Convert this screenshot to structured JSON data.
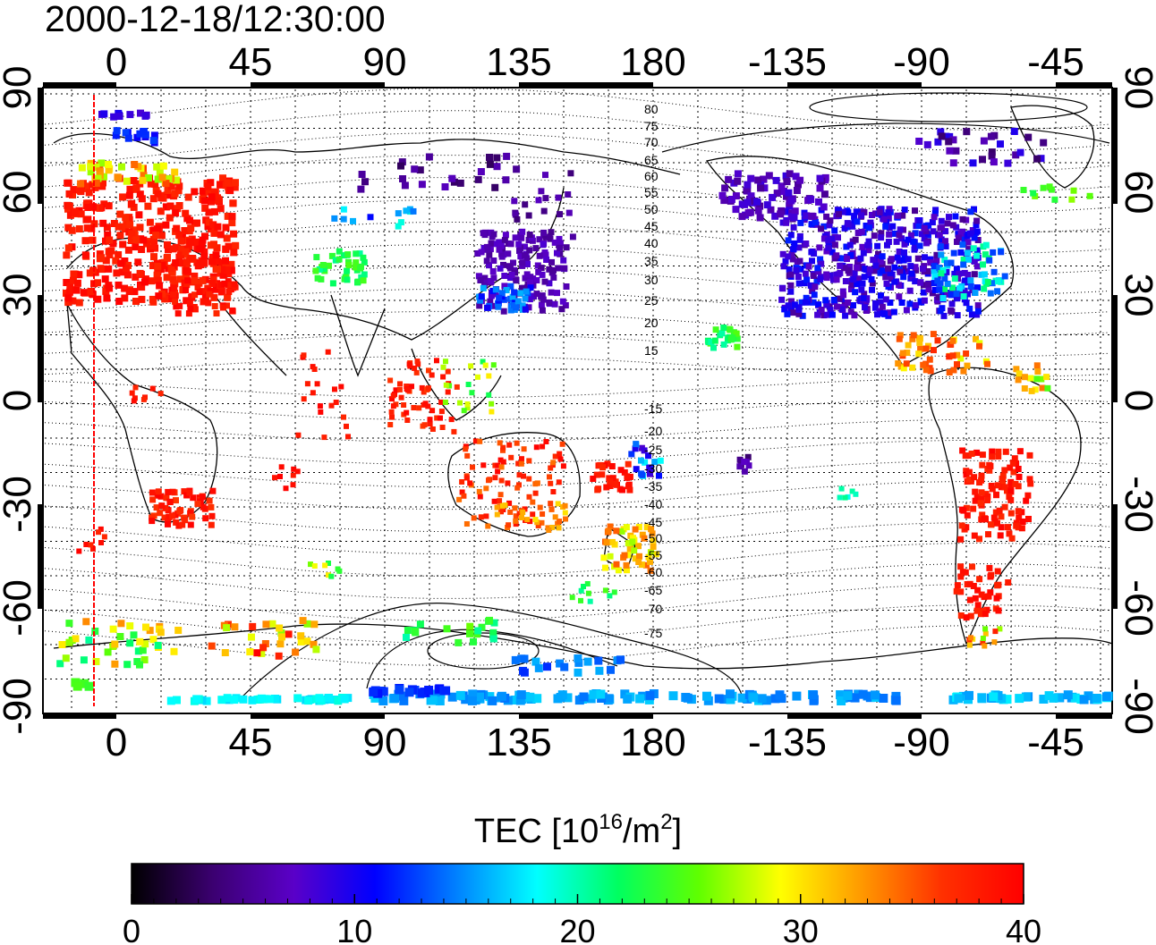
{
  "title": "2000-12-18/12:30:00",
  "map": {
    "top_longitude_ticks": [
      "0",
      "45",
      "90",
      "135",
      "180",
      "-135",
      "-90",
      "-45"
    ],
    "bottom_longitude_ticks": [
      "0",
      "45",
      "90",
      "135",
      "180",
      "-135",
      "-90",
      "-45"
    ],
    "latitude_ticks": [
      "90",
      "60",
      "30",
      "0",
      "-30",
      "-60",
      "-90"
    ],
    "contour_labels": [
      "80",
      "75",
      "70",
      "65",
      "60",
      "55",
      "50",
      "45",
      "40",
      "35",
      "30",
      "25",
      "20",
      "15",
      "-15",
      "-20",
      "-25",
      "-30",
      "-35",
      "-40",
      "-45",
      "-50",
      "-55",
      "-60",
      "-65",
      "-70",
      "-75"
    ],
    "colors": {
      "frame": "#000000",
      "grid": "#000000",
      "coastline": "#000000",
      "marker_line": "#ff0000"
    }
  },
  "colorbar": {
    "title_prefix": "TEC  [10",
    "title_exp1": "16",
    "title_mid": "/m",
    "title_exp2": "2",
    "title_suffix": "]",
    "tick_labels": [
      "0",
      "10",
      "20",
      "30",
      "40"
    ],
    "min": 0,
    "max": 40,
    "colormap": [
      "#000000",
      "#3b0070",
      "#5a00c8",
      "#0000ff",
      "#0080ff",
      "#00ffff",
      "#00ff60",
      "#60ff00",
      "#ffff00",
      "#ff9900",
      "#ff3000",
      "#ff0000"
    ]
  }
}
